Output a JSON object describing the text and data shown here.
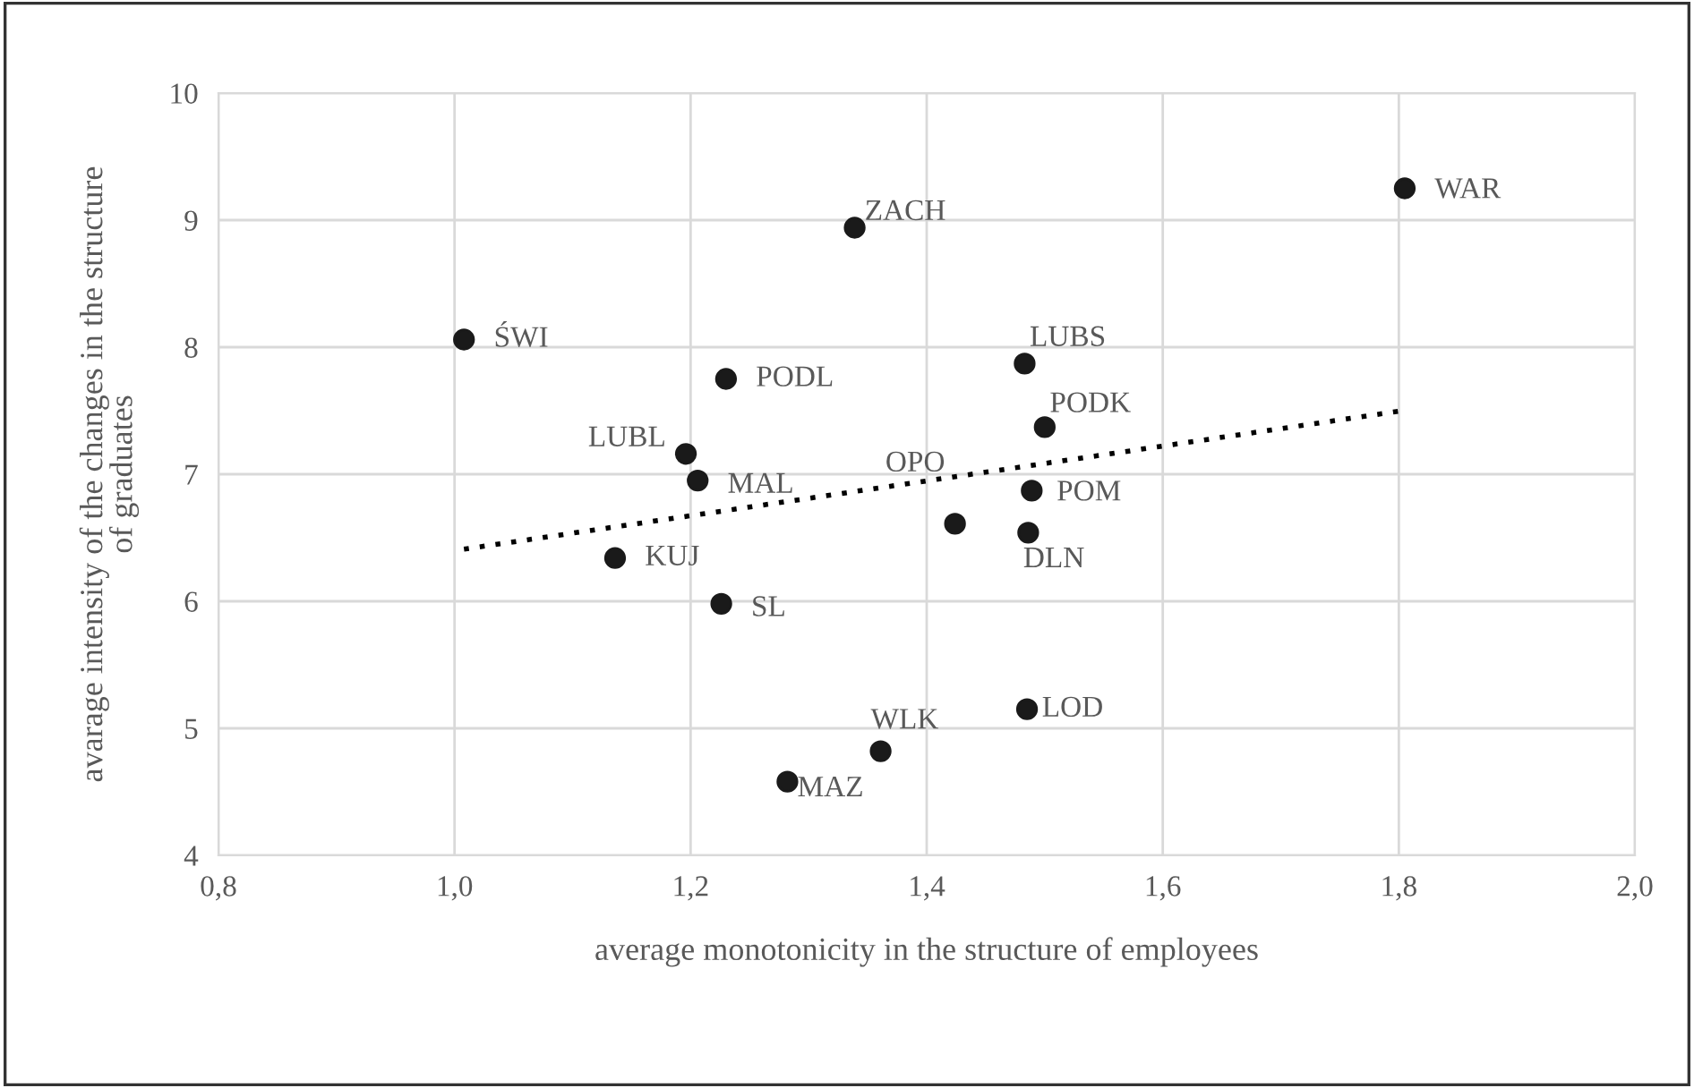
{
  "chart_data": {
    "type": "scatter",
    "xlabel": "average monotonicity in the structure of employees",
    "ylabel": "avarage intensity of the changes in the structure\nof graduates",
    "series": [
      {
        "color": "#1a1a1a",
        "marker": "circle",
        "x": [
          1.008,
          1.23,
          1.196,
          1.206,
          1.136,
          1.226,
          1.282,
          1.339,
          1.805,
          1.483,
          1.5,
          1.424,
          1.489,
          1.486,
          1.485,
          1.361
        ],
        "values": [
          8.06,
          7.75,
          7.16,
          6.95,
          6.34,
          5.98,
          4.58,
          8.94,
          9.25,
          7.87,
          7.37,
          6.61,
          6.87,
          6.54,
          5.15,
          4.82
        ]
      },
      {
        "type": "line",
        "color": "#000000",
        "line_style": "dotted",
        "x": [
          1.008,
          1.803
        ],
        "values": [
          6.41,
          7.5
        ]
      }
    ],
    "annotations": [
      {
        "text": "ŚWI",
        "x": 1.008,
        "y": 8.06
      },
      {
        "text": "PODL",
        "x": 1.23,
        "y": 7.75
      },
      {
        "text": "LUBL",
        "x": 1.196,
        "y": 7.16
      },
      {
        "text": "MAL",
        "x": 1.206,
        "y": 6.95
      },
      {
        "text": "KUJ",
        "x": 1.136,
        "y": 6.34
      },
      {
        "text": "SL",
        "x": 1.226,
        "y": 5.98
      },
      {
        "text": "MAZ",
        "x": 1.282,
        "y": 4.58
      },
      {
        "text": "ZACH",
        "x": 1.339,
        "y": 8.94
      },
      {
        "text": "WAR",
        "x": 1.805,
        "y": 9.25
      },
      {
        "text": "LUBS",
        "x": 1.483,
        "y": 7.87
      },
      {
        "text": "PODK",
        "x": 1.5,
        "y": 7.37
      },
      {
        "text": "OPO",
        "x": 1.424,
        "y": 6.61
      },
      {
        "text": "POM",
        "x": 1.489,
        "y": 6.87
      },
      {
        "text": "DLN",
        "x": 1.486,
        "y": 6.54
      },
      {
        "text": "LOD",
        "x": 1.485,
        "y": 5.15
      },
      {
        "text": "WLK",
        "x": 1.361,
        "y": 4.82
      }
    ],
    "xlim": [
      0.8,
      2.0
    ],
    "xticks": [
      {
        "value": 0.8,
        "label": "0,8"
      },
      {
        "value": 1.0,
        "label": "1,0"
      },
      {
        "value": 1.2,
        "label": "1,2"
      },
      {
        "value": 1.4,
        "label": "1,4"
      },
      {
        "value": 1.6,
        "label": "1,6"
      },
      {
        "value": 1.8,
        "label": "1,8"
      },
      {
        "value": 2.0,
        "label": "2,0"
      }
    ],
    "ylim": [
      4,
      10
    ],
    "yticks": [
      4,
      5,
      6,
      7,
      8,
      9,
      10
    ],
    "grid": true,
    "legend": false
  }
}
